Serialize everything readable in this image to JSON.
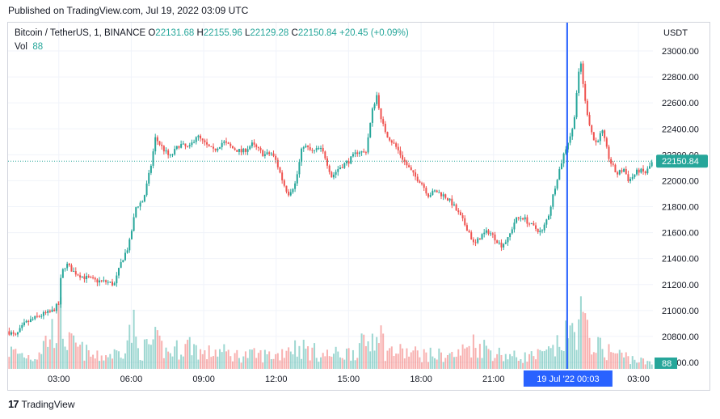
{
  "header": {
    "published": "Published on TradingView.com, Jul 19, 2022 03:09 UTC"
  },
  "legend": {
    "symbol": "Bitcoin / TetherUS, 1, BINANCE",
    "o_label": "O",
    "o_value": "22131.68",
    "h_label": "H",
    "h_value": "22155.96",
    "l_label": "L",
    "l_value": "22129.28",
    "c_label": "C",
    "c_value": "22150.84",
    "change": "+20.45 (+0.09%)",
    "vol_label": "Vol",
    "vol_value": "88"
  },
  "axis": {
    "currency": "USDT"
  },
  "footer": {
    "brand": "TradingView",
    "logo_text": "17"
  },
  "colors": {
    "up": "#26a69a",
    "down": "#ef5350",
    "crosshair": "#2962ff",
    "price_label_bg": "#26a69a"
  },
  "chart_data": {
    "type": "candlestick",
    "symbol": "Bitcoin / TetherUS",
    "interval": "1",
    "exchange": "BINANCE",
    "y_ticks": [
      "23000.00",
      "22800.00",
      "22600.00",
      "22400.00",
      "22200.00",
      "22000.00",
      "21800.00",
      "21600.00",
      "21400.00",
      "21200.00",
      "21000.00",
      "20800.00",
      "20600.00"
    ],
    "ylim": [
      20600,
      23000
    ],
    "x_ticks": [
      "03:00",
      "06:00",
      "09:00",
      "12:00",
      "15:00",
      "18:00",
      "21:00",
      "19 Jul '22",
      "03:00"
    ],
    "x_tick_hours": [
      3,
      6,
      9,
      12,
      15,
      18,
      21,
      24,
      27
    ],
    "xlim_hours": [
      0.9,
      27.6
    ],
    "last_price": "22150.84",
    "last_volume": "88",
    "crosshair_label": "19 Jul '22   00:03",
    "crosshair_hour": 24.05,
    "price_path": [
      [
        0.9,
        20840
      ],
      [
        1.2,
        20800
      ],
      [
        1.6,
        20900
      ],
      [
        2.2,
        20960
      ],
      [
        2.7,
        20990
      ],
      [
        3.0,
        21050
      ],
      [
        3.1,
        21280
      ],
      [
        3.3,
        21360
      ],
      [
        3.6,
        21300
      ],
      [
        4.0,
        21260
      ],
      [
        4.5,
        21230
      ],
      [
        5.0,
        21220
      ],
      [
        5.3,
        21200
      ],
      [
        5.6,
        21380
      ],
      [
        5.9,
        21500
      ],
      [
        6.2,
        21800
      ],
      [
        6.5,
        21850
      ],
      [
        6.8,
        22100
      ],
      [
        7.0,
        22330
      ],
      [
        7.3,
        22250
      ],
      [
        7.6,
        22180
      ],
      [
        8.0,
        22280
      ],
      [
        8.4,
        22250
      ],
      [
        8.7,
        22350
      ],
      [
        9.0,
        22290
      ],
      [
        9.4,
        22230
      ],
      [
        9.8,
        22300
      ],
      [
        10.2,
        22250
      ],
      [
        10.6,
        22220
      ],
      [
        11.0,
        22280
      ],
      [
        11.5,
        22200
      ],
      [
        11.8,
        22210
      ],
      [
        12.0,
        22150
      ],
      [
        12.3,
        21980
      ],
      [
        12.5,
        21900
      ],
      [
        12.8,
        21980
      ],
      [
        13.1,
        22280
      ],
      [
        13.5,
        22220
      ],
      [
        13.8,
        22250
      ],
      [
        14.0,
        22200
      ],
      [
        14.3,
        22030
      ],
      [
        14.6,
        22100
      ],
      [
        15.0,
        22150
      ],
      [
        15.4,
        22230
      ],
      [
        15.7,
        22210
      ],
      [
        16.0,
        22560
      ],
      [
        16.2,
        22680
      ],
      [
        16.3,
        22480
      ],
      [
        16.6,
        22350
      ],
      [
        17.0,
        22250
      ],
      [
        17.3,
        22150
      ],
      [
        17.7,
        22040
      ],
      [
        18.0,
        21990
      ],
      [
        18.3,
        21890
      ],
      [
        18.6,
        21920
      ],
      [
        19.0,
        21880
      ],
      [
        19.3,
        21820
      ],
      [
        19.7,
        21700
      ],
      [
        20.0,
        21600
      ],
      [
        20.2,
        21500
      ],
      [
        20.5,
        21580
      ],
      [
        20.8,
        21610
      ],
      [
        21.1,
        21550
      ],
      [
        21.3,
        21500
      ],
      [
        21.6,
        21550
      ],
      [
        21.9,
        21700
      ],
      [
        22.2,
        21720
      ],
      [
        22.6,
        21650
      ],
      [
        23.0,
        21600
      ],
      [
        23.3,
        21750
      ],
      [
        23.6,
        22000
      ],
      [
        23.9,
        22200
      ],
      [
        24.1,
        22310
      ],
      [
        24.3,
        22410
      ],
      [
        24.45,
        22700
      ],
      [
        24.6,
        22930
      ],
      [
        24.8,
        22600
      ],
      [
        25.0,
        22420
      ],
      [
        25.2,
        22280
      ],
      [
        25.5,
        22380
      ],
      [
        25.8,
        22160
      ],
      [
        26.1,
        22050
      ],
      [
        26.4,
        22090
      ],
      [
        26.6,
        22000
      ],
      [
        27.0,
        22080
      ],
      [
        27.3,
        22060
      ],
      [
        27.6,
        22150
      ]
    ],
    "volume_profile": [
      [
        0.9,
        40
      ],
      [
        2.0,
        25
      ],
      [
        3.1,
        110
      ],
      [
        3.3,
        60
      ],
      [
        4.5,
        25
      ],
      [
        5.5,
        35
      ],
      [
        6.1,
        90
      ],
      [
        6.3,
        35
      ],
      [
        7.0,
        60
      ],
      [
        7.5,
        35
      ],
      [
        8.5,
        55
      ],
      [
        9.0,
        30
      ],
      [
        9.5,
        40
      ],
      [
        10.3,
        30
      ],
      [
        11.5,
        30
      ],
      [
        12.1,
        30
      ],
      [
        12.5,
        50
      ],
      [
        13.1,
        45
      ],
      [
        14.0,
        30
      ],
      [
        15.0,
        35
      ],
      [
        15.9,
        60
      ],
      [
        16.2,
        110
      ],
      [
        16.5,
        40
      ],
      [
        17.5,
        35
      ],
      [
        18.5,
        30
      ],
      [
        19.5,
        30
      ],
      [
        20.1,
        55
      ],
      [
        20.5,
        50
      ],
      [
        21.1,
        35
      ],
      [
        22.0,
        25
      ],
      [
        23.0,
        30
      ],
      [
        23.5,
        40
      ],
      [
        24.1,
        75
      ],
      [
        24.4,
        85
      ],
      [
        24.6,
        120
      ],
      [
        24.9,
        70
      ],
      [
        25.4,
        45
      ],
      [
        26.0,
        35
      ],
      [
        26.6,
        25
      ],
      [
        27.6,
        10
      ]
    ],
    "grid": true,
    "price_scale_position": "right"
  }
}
